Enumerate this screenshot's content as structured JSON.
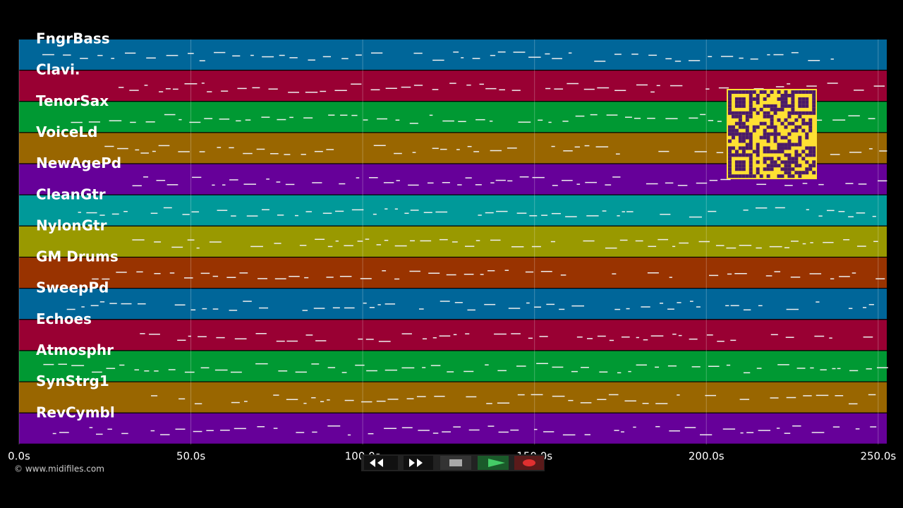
{
  "tracks": [
    {
      "name": "FngrBass",
      "color": "#006699"
    },
    {
      "name": "Clavi.",
      "color": "#990033"
    },
    {
      "name": "TenorSax",
      "color": "#009933"
    },
    {
      "name": "VoiceLd",
      "color": "#996600"
    },
    {
      "name": "NewAgePd",
      "color": "#660099"
    },
    {
      "name": "CleanGtr",
      "color": "#009999"
    },
    {
      "name": "NylonGtr",
      "color": "#999900"
    },
    {
      "name": "GM Drums",
      "color": "#993300"
    },
    {
      "name": "SweepPd",
      "color": "#006699"
    },
    {
      "name": "Echoes",
      "color": "#990033"
    },
    {
      "name": "Atmosphr",
      "color": "#009933"
    },
    {
      "name": "SynStrg1",
      "color": "#996600"
    },
    {
      "name": "RevCymbl",
      "color": "#660099"
    }
  ],
  "timeline": {
    "xlim": [
      0,
      252.5
    ],
    "ticks": [
      {
        "value": 0,
        "label": "0.0s"
      },
      {
        "value": 50,
        "label": "50.0s"
      },
      {
        "value": 100,
        "label": "100.0s"
      },
      {
        "value": 150,
        "label": "150.0s"
      },
      {
        "value": 200,
        "label": "200.0s"
      },
      {
        "value": 250,
        "label": "250.0s"
      }
    ]
  },
  "footer": {
    "copyright": "© www.midifiles.com"
  }
}
